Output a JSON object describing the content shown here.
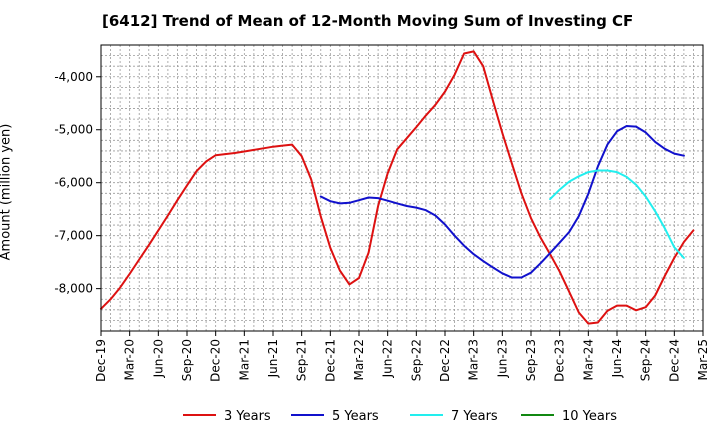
{
  "chart_data": {
    "type": "line",
    "title": "[6412]  Trend of Mean of 12-Month Moving Sum of Investing CF",
    "xlabel": "",
    "ylabel": "Amount (million yen)",
    "ylim": [
      -8800,
      -3400
    ],
    "y_ticks": [
      -4000,
      -5000,
      -6000,
      -7000,
      -8000
    ],
    "y_tick_labels": [
      "-4,000",
      "-5,000",
      "-6,000",
      "-7,000",
      "-8,000"
    ],
    "x_ticks": [
      "Dec-19",
      "Mar-20",
      "Jun-20",
      "Sep-20",
      "Dec-20",
      "Mar-21",
      "Jun-21",
      "Sep-21",
      "Dec-21",
      "Mar-22",
      "Jun-22",
      "Sep-22",
      "Dec-22",
      "Mar-23",
      "Jun-23",
      "Sep-23",
      "Dec-23",
      "Mar-24",
      "Jun-24",
      "Sep-24",
      "Dec-24",
      "Mar-25"
    ],
    "x_start": "2019-12",
    "grid": true,
    "legend_position": "bottom",
    "series": [
      {
        "name": "3 Years",
        "color": "#dd1111",
        "start": "2019-12",
        "values": [
          -8380,
          -8200,
          -7980,
          -7720,
          -7450,
          -7180,
          -6900,
          -6620,
          -6330,
          -6050,
          -5780,
          -5600,
          -5480,
          -5460,
          -5440,
          -5410,
          -5380,
          -5350,
          -5320,
          -5300,
          -5280,
          -5500,
          -5940,
          -6640,
          -7230,
          -7660,
          -7920,
          -7800,
          -7320,
          -6440,
          -5820,
          -5370,
          -5160,
          -4950,
          -4730,
          -4530,
          -4280,
          -3960,
          -3560,
          -3520,
          -3800,
          -4440,
          -5060,
          -5640,
          -6200,
          -6670,
          -7040,
          -7350,
          -7680,
          -8060,
          -8450,
          -8660,
          -8640,
          -8420,
          -8320,
          -8320,
          -8410,
          -8350,
          -8130,
          -7760,
          -7420,
          -7120,
          -6900
        ]
      },
      {
        "name": "5 Years",
        "color": "#1111cc",
        "start": "2021-11",
        "values": [
          -6260,
          -6350,
          -6390,
          -6380,
          -6330,
          -6280,
          -6290,
          -6340,
          -6390,
          -6440,
          -6470,
          -6520,
          -6620,
          -6790,
          -7000,
          -7190,
          -7350,
          -7480,
          -7600,
          -7710,
          -7790,
          -7790,
          -7700,
          -7520,
          -7330,
          -7130,
          -6930,
          -6630,
          -6210,
          -5690,
          -5280,
          -5030,
          -4930,
          -4940,
          -5050,
          -5230,
          -5360,
          -5450,
          -5490
        ]
      },
      {
        "name": "7 Years",
        "color": "#22eeee",
        "start": "2023-11",
        "values": [
          -6310,
          -6130,
          -5980,
          -5880,
          -5800,
          -5770,
          -5770,
          -5800,
          -5890,
          -6040,
          -6260,
          -6540,
          -6860,
          -7220,
          -7420
        ]
      },
      {
        "name": "10 Years",
        "color": "#118811",
        "start": "2023-11",
        "values": []
      }
    ]
  }
}
